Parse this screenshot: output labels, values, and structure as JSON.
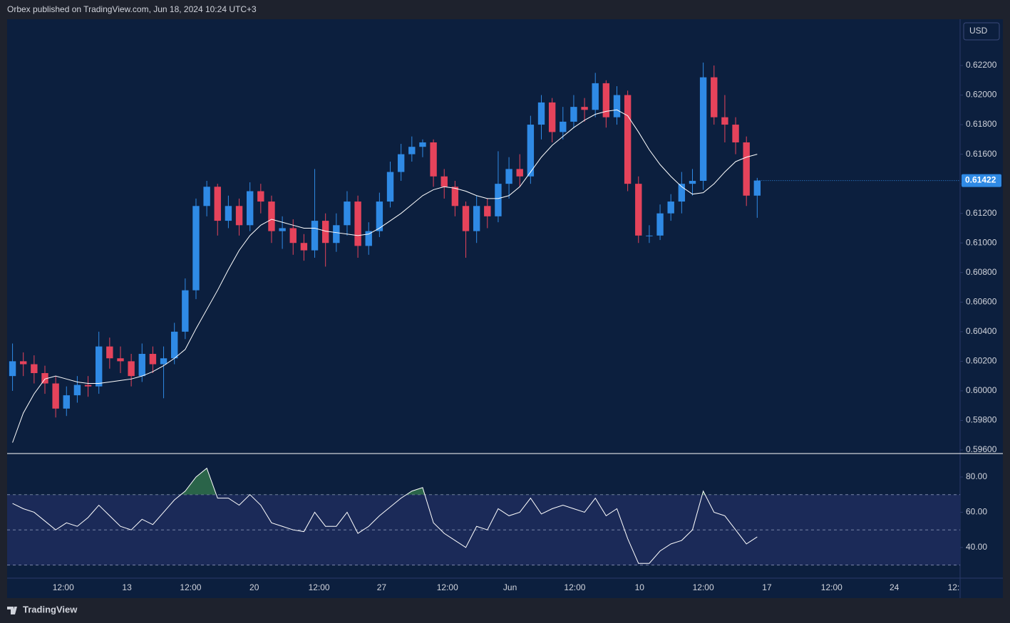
{
  "header": "Orbex published on TradingView.com, Jun 18, 2024 10:24 UTC+3",
  "footer": "TradingView",
  "currency": "USD",
  "chart_data": [
    {
      "type": "candlestick",
      "open": [
        0.601,
        0.602,
        0.6018,
        0.6012,
        0.6005,
        0.5988,
        0.5997,
        0.6004,
        0.6003,
        0.603,
        0.6022,
        0.602,
        0.601,
        0.6025,
        0.6018,
        0.6022,
        0.604,
        0.6068,
        0.6125,
        0.6138,
        0.6115,
        0.6125,
        0.6112,
        0.6135,
        0.6128,
        0.6108,
        0.611,
        0.61,
        0.6095,
        0.6115,
        0.61,
        0.6112,
        0.6128,
        0.6098,
        0.6108,
        0.6128,
        0.6148,
        0.616,
        0.6165,
        0.6168,
        0.6145,
        0.6138,
        0.6125,
        0.6108,
        0.6125,
        0.6118,
        0.614,
        0.615,
        0.6145,
        0.618,
        0.6195,
        0.6175,
        0.6182,
        0.6192,
        0.619,
        0.6208,
        0.6185,
        0.62,
        0.614,
        0.6105,
        0.6105,
        0.612,
        0.6128,
        0.614,
        0.6142,
        0.6212,
        0.6185,
        0.618,
        0.6168,
        0.6132
      ],
      "high": [
        0.6032,
        0.6026,
        0.6024,
        0.6017,
        0.601,
        0.6003,
        0.601,
        0.601,
        0.604,
        0.6036,
        0.603,
        0.6025,
        0.6032,
        0.603,
        0.603,
        0.6046,
        0.6076,
        0.613,
        0.6142,
        0.614,
        0.6132,
        0.613,
        0.6141,
        0.614,
        0.6132,
        0.6118,
        0.6116,
        0.6106,
        0.615,
        0.612,
        0.612,
        0.6135,
        0.6132,
        0.6114,
        0.6134,
        0.6155,
        0.6167,
        0.6172,
        0.617,
        0.617,
        0.615,
        0.6142,
        0.6128,
        0.6132,
        0.613,
        0.6162,
        0.6158,
        0.616,
        0.6186,
        0.62,
        0.6198,
        0.6192,
        0.62,
        0.6198,
        0.6215,
        0.621,
        0.6206,
        0.6203,
        0.6145,
        0.6112,
        0.6126,
        0.6133,
        0.6148,
        0.615,
        0.6222,
        0.622,
        0.62,
        0.6185,
        0.6172,
        0.6144
      ],
      "low": [
        0.6,
        0.601,
        0.6005,
        0.5998,
        0.5982,
        0.5983,
        0.5992,
        0.5996,
        0.5998,
        0.6015,
        0.6012,
        0.6003,
        0.6006,
        0.6012,
        0.5995,
        0.6018,
        0.6035,
        0.6062,
        0.6118,
        0.6105,
        0.611,
        0.6105,
        0.6108,
        0.612,
        0.61,
        0.6096,
        0.6092,
        0.6088,
        0.609,
        0.6084,
        0.6094,
        0.6105,
        0.609,
        0.6092,
        0.6104,
        0.6124,
        0.6142,
        0.6155,
        0.6158,
        0.6138,
        0.613,
        0.6118,
        0.609,
        0.61,
        0.611,
        0.6114,
        0.613,
        0.6138,
        0.614,
        0.617,
        0.6168,
        0.617,
        0.6178,
        0.6182,
        0.6185,
        0.6178,
        0.618,
        0.6135,
        0.61,
        0.61,
        0.6102,
        0.6115,
        0.612,
        0.6132,
        0.6136,
        0.618,
        0.6168,
        0.616,
        0.6125,
        0.6117
      ],
      "close": [
        0.602,
        0.6018,
        0.6012,
        0.6005,
        0.5988,
        0.5997,
        0.6004,
        0.6003,
        0.603,
        0.6022,
        0.602,
        0.601,
        0.6025,
        0.6018,
        0.6022,
        0.604,
        0.6068,
        0.6125,
        0.6138,
        0.6115,
        0.6125,
        0.6112,
        0.6135,
        0.6128,
        0.6108,
        0.611,
        0.61,
        0.6095,
        0.6115,
        0.61,
        0.6112,
        0.6128,
        0.6098,
        0.6108,
        0.6128,
        0.6148,
        0.616,
        0.6165,
        0.6168,
        0.6145,
        0.6138,
        0.6125,
        0.6108,
        0.6125,
        0.6118,
        0.614,
        0.615,
        0.6145,
        0.618,
        0.6195,
        0.6175,
        0.6182,
        0.6192,
        0.619,
        0.6208,
        0.6185,
        0.62,
        0.614,
        0.6105,
        0.6105,
        0.612,
        0.6128,
        0.614,
        0.6142,
        0.6212,
        0.6185,
        0.618,
        0.6168,
        0.6132,
        0.61422
      ],
      "ma": [
        0.5965,
        0.5985,
        0.5998,
        0.6008,
        0.601,
        0.6008,
        0.6006,
        0.6005,
        0.6005,
        0.6006,
        0.6007,
        0.6008,
        0.601,
        0.6013,
        0.6017,
        0.6022,
        0.6028,
        0.6042,
        0.6055,
        0.6068,
        0.6082,
        0.6095,
        0.6105,
        0.6112,
        0.6116,
        0.6114,
        0.6112,
        0.611,
        0.611,
        0.6108,
        0.6107,
        0.6106,
        0.6105,
        0.6106,
        0.611,
        0.6115,
        0.612,
        0.6126,
        0.6132,
        0.6136,
        0.6138,
        0.6137,
        0.6135,
        0.6132,
        0.613,
        0.613,
        0.6132,
        0.6138,
        0.6148,
        0.6158,
        0.6166,
        0.6172,
        0.6178,
        0.6183,
        0.6187,
        0.6189,
        0.619,
        0.6186,
        0.6175,
        0.6163,
        0.6153,
        0.6145,
        0.6138,
        0.6133,
        0.6134,
        0.614,
        0.6148,
        0.6155,
        0.6158,
        0.616
      ],
      "up_color": "#2f8ae5",
      "down_color": "#e5435b",
      "ma_color": "#ffffff",
      "last_price": {
        "value": 0.61422,
        "label": "0.61422"
      },
      "ylim": [
        0.59576,
        0.62508
      ],
      "yticks": [
        {
          "value": 0.596,
          "label": "0.59600"
        },
        {
          "value": 0.598,
          "label": "0.59800"
        },
        {
          "value": 0.6,
          "label": "0.60000"
        },
        {
          "value": 0.602,
          "label": "0.60200"
        },
        {
          "value": 0.604,
          "label": "0.60400"
        },
        {
          "value": 0.606,
          "label": "0.60600"
        },
        {
          "value": 0.608,
          "label": "0.60800"
        },
        {
          "value": 0.61,
          "label": "0.61000"
        },
        {
          "value": 0.612,
          "label": "0.61200"
        },
        {
          "value": 0.614,
          "label": "0.61400"
        },
        {
          "value": 0.616,
          "label": "0.61600"
        },
        {
          "value": 0.618,
          "label": "0.61800"
        },
        {
          "value": 0.62,
          "label": "0.62000"
        },
        {
          "value": 0.622,
          "label": "0.62200"
        }
      ],
      "xlim": [
        -0.5,
        87.8
      ],
      "xticks": [
        {
          "value": 4.7,
          "label": "12:00"
        },
        {
          "value": 10.6,
          "label": "13"
        },
        {
          "value": 16.5,
          "label": "12:00"
        },
        {
          "value": 22.4,
          "label": "20"
        },
        {
          "value": 28.4,
          "label": "12:00"
        },
        {
          "value": 34.2,
          "label": "27"
        },
        {
          "value": 40.3,
          "label": "12:00"
        },
        {
          "value": 46.1,
          "label": "Jun"
        },
        {
          "value": 52.1,
          "label": "12:00"
        },
        {
          "value": 58.1,
          "label": "10"
        },
        {
          "value": 64.0,
          "label": "12:00"
        },
        {
          "value": 69.9,
          "label": "17"
        },
        {
          "value": 75.9,
          "label": "12:00"
        },
        {
          "value": 81.7,
          "label": "24"
        },
        {
          "value": 87.2,
          "label": "12:"
        }
      ]
    },
    {
      "type": "line",
      "values": [
        65,
        62,
        60,
        55,
        50,
        54,
        52,
        57,
        64,
        58,
        52,
        50,
        56,
        53,
        60,
        67,
        72,
        80,
        85,
        68,
        68,
        64,
        70,
        64,
        54,
        52,
        50,
        49,
        60,
        52,
        52,
        60,
        48,
        52,
        58,
        63,
        68,
        72,
        74,
        54,
        48,
        44,
        40,
        52,
        50,
        62,
        58,
        60,
        68,
        59,
        62,
        64,
        62,
        60,
        68,
        58,
        62,
        45,
        31,
        31,
        38,
        42,
        44,
        50,
        72,
        60,
        58,
        50,
        42,
        46
      ],
      "color": "#ffffff",
      "overbought_color": "#2e6b4a",
      "band_color": "#1b2a58",
      "levels": [
        70,
        50,
        30
      ],
      "ylim": [
        22.6,
        92.1
      ],
      "yticks": [
        {
          "value": 40,
          "label": "40.00"
        },
        {
          "value": 60,
          "label": "60.00"
        },
        {
          "value": 80,
          "label": "80.00"
        }
      ],
      "xlim": [
        -0.5,
        87.8
      ]
    }
  ]
}
